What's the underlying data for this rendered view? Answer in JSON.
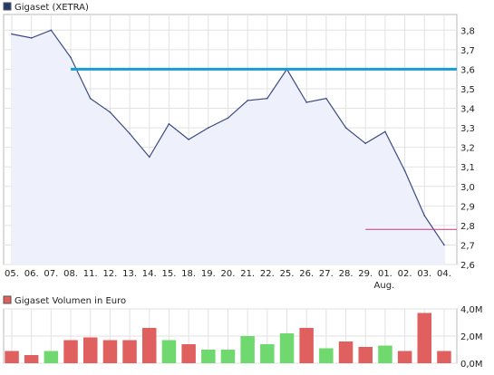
{
  "chart_data": [
    {
      "type": "line",
      "legend": {
        "label": "Gigaset (XETRA)",
        "color": "#243a6b"
      },
      "x": [
        "05.",
        "06.",
        "07.",
        "08.",
        "11.",
        "12.",
        "13.",
        "14.",
        "15.",
        "18.",
        "19.",
        "20.",
        "21.",
        "22.",
        "25.",
        "26.",
        "27.",
        "28.",
        "29.",
        "01.",
        "02.",
        "03.",
        "04."
      ],
      "month_label": "Aug.",
      "month_label_under": "01.",
      "values": [
        3.78,
        3.76,
        3.8,
        3.66,
        3.45,
        3.38,
        3.27,
        3.15,
        3.32,
        3.24,
        3.3,
        3.35,
        3.44,
        3.45,
        3.6,
        3.43,
        3.45,
        3.3,
        3.22,
        3.28,
        3.08,
        2.85,
        2.7
      ],
      "yticks": [
        "2,6",
        "2,7",
        "2,8",
        "2,9",
        "3,0",
        "3,1",
        "3,2",
        "3,3",
        "3,4",
        "3,5",
        "3,6",
        "3,7",
        "3,8"
      ],
      "ylim": [
        2.6,
        3.88
      ],
      "grid": true,
      "line_color": "#3a4a80",
      "fill_color": "#eef1fb",
      "resistance": {
        "value": 3.6,
        "from": "08.",
        "to": "04.",
        "color": "#1a9ad6"
      },
      "support": {
        "value": 2.78,
        "from": "29.",
        "to": "04.",
        "color": "#c0388a"
      }
    },
    {
      "type": "bar",
      "legend": {
        "label": "Gigaset Volumen in Euro",
        "color": "#e06060"
      },
      "x": [
        "05.",
        "06.",
        "07.",
        "08.",
        "11.",
        "12.",
        "13.",
        "14.",
        "15.",
        "18.",
        "19.",
        "20.",
        "21.",
        "22.",
        "25.",
        "26.",
        "27.",
        "28.",
        "29.",
        "01.",
        "02.",
        "03.",
        "04."
      ],
      "values": [
        0.9,
        0.6,
        0.9,
        1.7,
        1.9,
        1.7,
        1.7,
        2.6,
        1.7,
        1.4,
        1.0,
        1.0,
        2.0,
        1.4,
        2.2,
        2.6,
        1.1,
        1.6,
        1.2,
        1.3,
        0.9,
        3.7,
        0.9
      ],
      "direction": [
        "down",
        "down",
        "up",
        "down",
        "down",
        "down",
        "down",
        "down",
        "up",
        "down",
        "up",
        "up",
        "up",
        "up",
        "up",
        "down",
        "up",
        "down",
        "down",
        "up",
        "down",
        "down",
        "down"
      ],
      "yticks": [
        "0,0M",
        "2,0M",
        "4,0M"
      ],
      "ylim": [
        0,
        4.0
      ],
      "up_color": "#6fd86f",
      "down_color": "#e06060",
      "grid": true
    }
  ]
}
